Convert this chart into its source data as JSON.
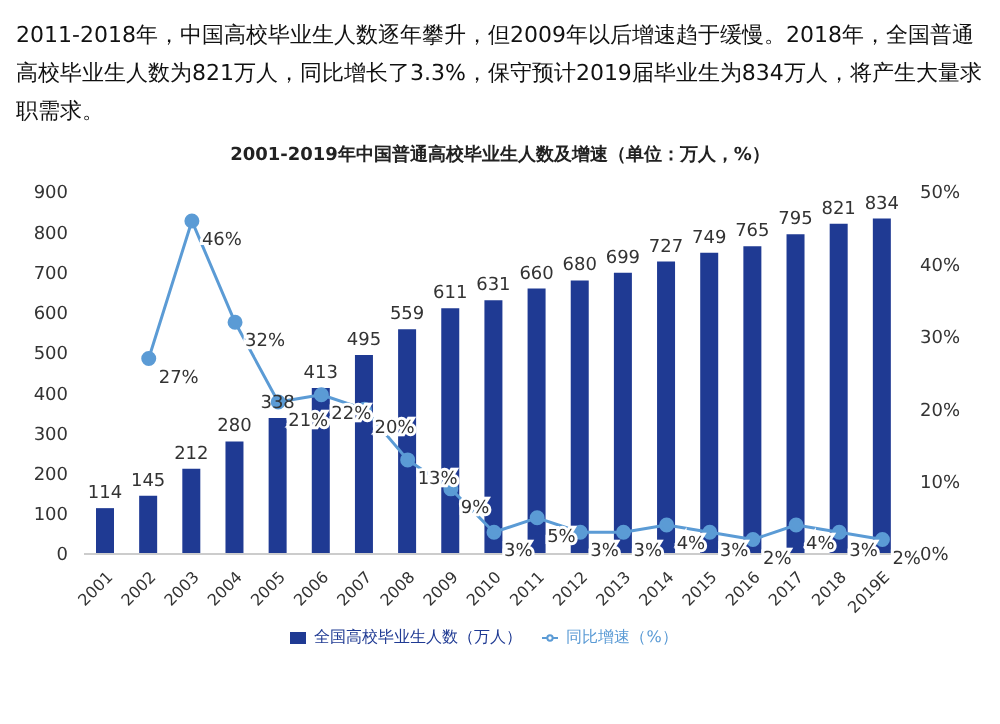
{
  "chart_data": {
    "type": "bar",
    "title": "2001-2019年中国普通高校毕业生人数及增速（单位：万人，%）",
    "annotations": [
      "2011-2018年，中国高校毕业生人数逐年攀升，但2009年以后增速趋于缓慢。2018年，全国普通高校毕业生人数为821万人，同比增长了3.3%，保守预计2019届毕业生为834万人，将产生大量求职需求。"
    ],
    "categories": [
      "2001",
      "2002",
      "2003",
      "2004",
      "2005",
      "2006",
      "2007",
      "2008",
      "2009",
      "2010",
      "2011",
      "2012",
      "2013",
      "2014",
      "2015",
      "2016",
      "2017",
      "2018",
      "2019E"
    ],
    "series": [
      {
        "name": "全国高校毕业生人数（万人）",
        "color": "#1f3a93",
        "values": [
          114,
          145,
          212,
          280,
          338,
          413,
          495,
          559,
          611,
          631,
          660,
          680,
          699,
          727,
          749,
          765,
          795,
          821,
          834
        ]
      },
      {
        "name": "同比增速（%）",
        "type": "line",
        "axis": "y2",
        "color": "#5b9bd5",
        "marker": "circle",
        "values": [
          null,
          27,
          46,
          32,
          21,
          22,
          20,
          13,
          9,
          3,
          5,
          3,
          3,
          4,
          3,
          2,
          4,
          3,
          2
        ],
        "value_labels": [
          null,
          "27%",
          "46%",
          "32%",
          "21%",
          "22%",
          "20%",
          "13%",
          "9%",
          "3%",
          "5%",
          "3%",
          "3%",
          "4%",
          "3%",
          "2%",
          "4%",
          "3%",
          "2%"
        ]
      }
    ],
    "data_labels": true,
    "ylim": [
      0,
      900
    ],
    "yticks": [
      0,
      100,
      200,
      300,
      400,
      500,
      600,
      700,
      800,
      900
    ],
    "y2lim": [
      0,
      50
    ],
    "y2ticks": [
      {
        "value": 0,
        "label": "0%"
      },
      {
        "value": 10,
        "label": "10%"
      },
      {
        "value": 20,
        "label": "20%"
      },
      {
        "value": 30,
        "label": "30%"
      },
      {
        "value": 40,
        "label": "40%"
      },
      {
        "value": 50,
        "label": "50%"
      }
    ],
    "grid": false,
    "legend": "bottom"
  }
}
